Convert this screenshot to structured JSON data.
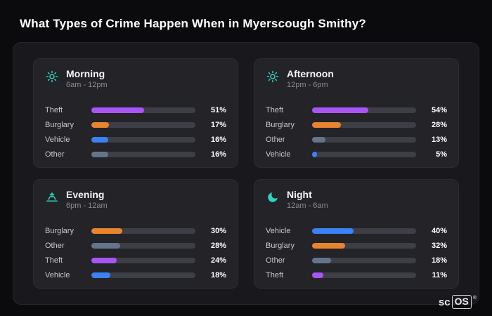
{
  "page": {
    "title": "What Types of Crime Happen When in Myerscough Smithy?"
  },
  "colors": {
    "background": "#0b0b0d",
    "panel": "#19191d",
    "card": "#232328",
    "track": "#3e3e46",
    "theft": "#a855f7",
    "burglary": "#e8832e",
    "vehicle": "#3b82f6",
    "other": "#64748b",
    "icon_accent": "#2dd4bf"
  },
  "cards": [
    {
      "id": "morning",
      "title": "Morning",
      "subtitle": "6am - 12pm",
      "icon": "sun-icon",
      "rows": [
        {
          "label": "Theft",
          "value": 51,
          "value_label": "51%",
          "color": "#a855f7"
        },
        {
          "label": "Burglary",
          "value": 17,
          "value_label": "17%",
          "color": "#e8832e"
        },
        {
          "label": "Vehicle",
          "value": 16,
          "value_label": "16%",
          "color": "#3b82f6"
        },
        {
          "label": "Other",
          "value": 16,
          "value_label": "16%",
          "color": "#64748b"
        }
      ]
    },
    {
      "id": "afternoon",
      "title": "Afternoon",
      "subtitle": "12pm - 6pm",
      "icon": "sun-icon",
      "rows": [
        {
          "label": "Theft",
          "value": 54,
          "value_label": "54%",
          "color": "#a855f7"
        },
        {
          "label": "Burglary",
          "value": 28,
          "value_label": "28%",
          "color": "#e8832e"
        },
        {
          "label": "Other",
          "value": 13,
          "value_label": "13%",
          "color": "#64748b"
        },
        {
          "label": "Vehicle",
          "value": 5,
          "value_label": "5%",
          "color": "#3b82f6"
        }
      ]
    },
    {
      "id": "evening",
      "title": "Evening",
      "subtitle": "6pm - 12am",
      "icon": "sunset-icon",
      "rows": [
        {
          "label": "Burglary",
          "value": 30,
          "value_label": "30%",
          "color": "#e8832e"
        },
        {
          "label": "Other",
          "value": 28,
          "value_label": "28%",
          "color": "#64748b"
        },
        {
          "label": "Theft",
          "value": 24,
          "value_label": "24%",
          "color": "#a855f7"
        },
        {
          "label": "Vehicle",
          "value": 18,
          "value_label": "18%",
          "color": "#3b82f6"
        }
      ]
    },
    {
      "id": "night",
      "title": "Night",
      "subtitle": "12am - 6am",
      "icon": "moon-icon",
      "rows": [
        {
          "label": "Vehicle",
          "value": 40,
          "value_label": "40%",
          "color": "#3b82f6"
        },
        {
          "label": "Burglary",
          "value": 32,
          "value_label": "32%",
          "color": "#e8832e"
        },
        {
          "label": "Other",
          "value": 18,
          "value_label": "18%",
          "color": "#64748b"
        },
        {
          "label": "Theft",
          "value": 11,
          "value_label": "11%",
          "color": "#a855f7"
        }
      ]
    }
  ],
  "logo": {
    "prefix": "sc",
    "boxed": "OS",
    "registered": "®"
  },
  "chart_data": [
    {
      "type": "bar",
      "orientation": "horizontal",
      "title": "Morning (6am - 12pm)",
      "categories": [
        "Theft",
        "Burglary",
        "Vehicle",
        "Other"
      ],
      "values": [
        51,
        17,
        16,
        16
      ],
      "unit": "%",
      "xlabel": "",
      "ylabel": "",
      "xlim": [
        0,
        100
      ],
      "grid": false,
      "legend": "none"
    },
    {
      "type": "bar",
      "orientation": "horizontal",
      "title": "Afternoon (12pm - 6pm)",
      "categories": [
        "Theft",
        "Burglary",
        "Other",
        "Vehicle"
      ],
      "values": [
        54,
        28,
        13,
        5
      ],
      "unit": "%",
      "xlabel": "",
      "ylabel": "",
      "xlim": [
        0,
        100
      ],
      "grid": false,
      "legend": "none"
    },
    {
      "type": "bar",
      "orientation": "horizontal",
      "title": "Evening (6pm - 12am)",
      "categories": [
        "Burglary",
        "Other",
        "Theft",
        "Vehicle"
      ],
      "values": [
        30,
        28,
        24,
        18
      ],
      "unit": "%",
      "xlabel": "",
      "ylabel": "",
      "xlim": [
        0,
        100
      ],
      "grid": false,
      "legend": "none"
    },
    {
      "type": "bar",
      "orientation": "horizontal",
      "title": "Night (12am - 6am)",
      "categories": [
        "Vehicle",
        "Burglary",
        "Other",
        "Theft"
      ],
      "values": [
        40,
        32,
        18,
        11
      ],
      "unit": "%",
      "xlabel": "",
      "ylabel": "",
      "xlim": [
        0,
        100
      ],
      "grid": false,
      "legend": "none"
    }
  ]
}
